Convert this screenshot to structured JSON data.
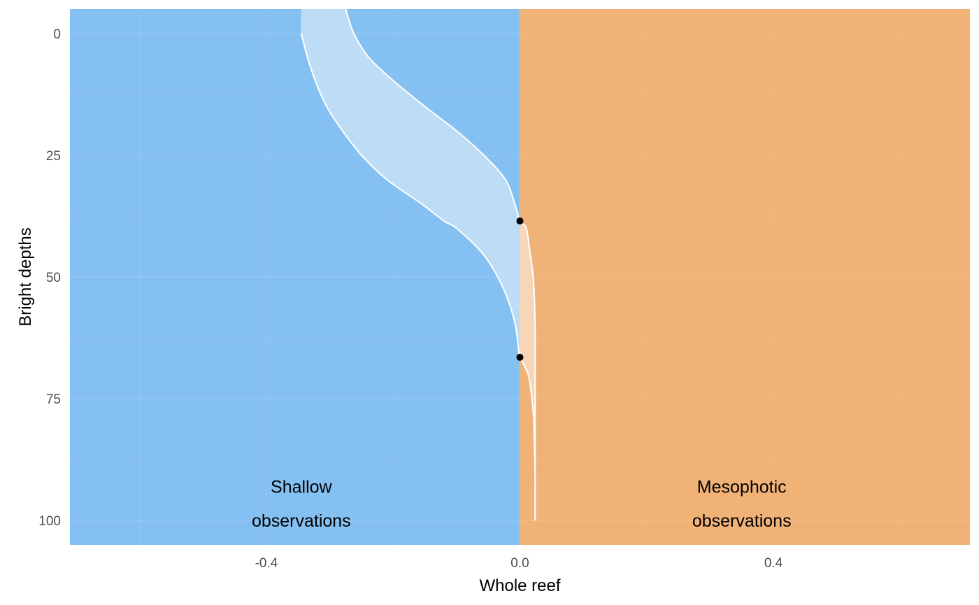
{
  "chart_data": {
    "type": "area",
    "xlabel": "Whole reef",
    "ylabel": "Bright depths",
    "xlim": [
      -0.71,
      0.71
    ],
    "ylim": [
      -5,
      105
    ],
    "y_reversed": true,
    "x_ticks": [
      -0.4,
      0.0,
      0.4
    ],
    "x_tick_labels": [
      "-0.4",
      "0.0",
      "0.4"
    ],
    "y_ticks": [
      0,
      25,
      50,
      75,
      100
    ],
    "y_tick_labels": [
      "0",
      "25",
      "50",
      "75",
      "100"
    ],
    "grid": true,
    "regions": [
      {
        "name": "shallow",
        "x_range": [
          -0.71,
          0.0
        ],
        "color": "#85c0f2",
        "label": [
          "Shallow",
          "observations"
        ],
        "label_x": -0.345,
        "label_y": [
          93,
          100
        ]
      },
      {
        "name": "mesophotic",
        "x_range": [
          0.0,
          0.71
        ],
        "color": "#f0b277",
        "label": [
          "Mesophotic",
          "observations"
        ],
        "label_x": 0.35,
        "label_y": [
          93,
          100
        ]
      }
    ],
    "band": {
      "y": [
        -5,
        0,
        5,
        10,
        15,
        20,
        25,
        30,
        35,
        38.5,
        40,
        45,
        50,
        55,
        60,
        65,
        66.5,
        70,
        75,
        80,
        85,
        90,
        95,
        100
      ],
      "lower": [
        -0.345,
        -0.345,
        -0.335,
        -0.322,
        -0.305,
        -0.28,
        -0.25,
        -0.21,
        -0.155,
        -0.12,
        -0.1,
        -0.06,
        -0.035,
        -0.018,
        -0.007,
        -0.002,
        0.0,
        0.013,
        0.019,
        0.022,
        0.023,
        0.024,
        0.024,
        0.024
      ],
      "upper": [
        -0.275,
        -0.262,
        -0.238,
        -0.197,
        -0.15,
        -0.1,
        -0.057,
        -0.023,
        -0.008,
        0.0,
        0.01,
        0.016,
        0.021,
        0.023,
        0.024,
        0.024,
        0.024,
        0.024,
        0.024,
        0.024,
        0.024,
        0.024,
        0.024,
        0.024
      ],
      "fill_shallow": "#bddcf6",
      "fill_mesophotic": "#f7d6b8",
      "edge_color": "#ffffff"
    },
    "points": [
      {
        "x": 0.0,
        "y": 38.5
      },
      {
        "x": 0.0,
        "y": 66.5
      }
    ],
    "point_color": "#000000"
  }
}
